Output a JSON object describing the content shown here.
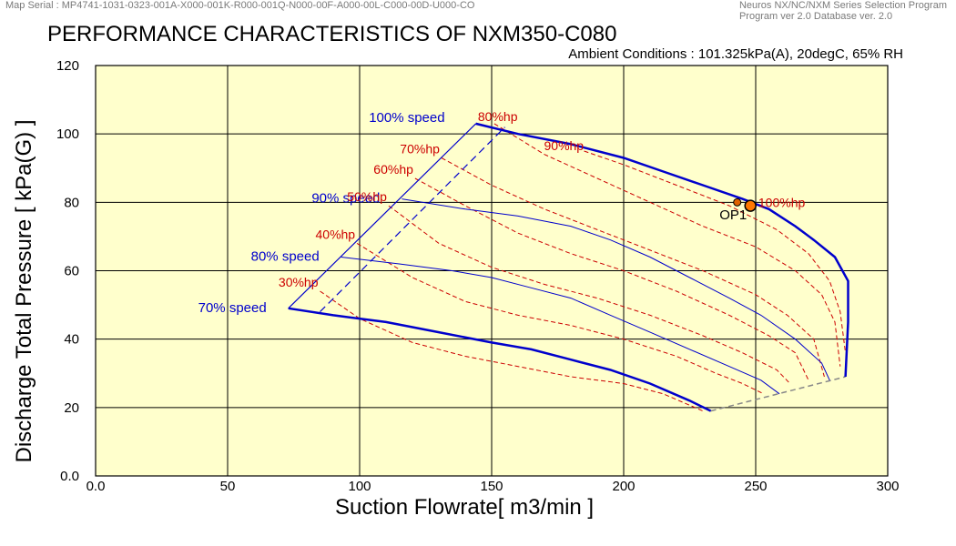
{
  "header": {
    "map_serial": "Map Serial : MP4741-1031-0323-001A-X000-001K-R000-001Q-N000-00F-A000-00L-C000-00D-U000-CO",
    "program_line1": "Neuros NX/NC/NXM Series Selection Program",
    "program_line2": "Program ver 2.0 Database ver. 2.0"
  },
  "chart_data": {
    "type": "line",
    "title": "PERFORMANCE CHARACTERISTICS OF NXM350-C080",
    "subtitle": "Ambient Conditions : 101.325kPa(A), 20degC, 65% RH",
    "xlabel": "Suction Flowrate[ m3/min ]",
    "ylabel": "Discharge Total Pressure  [ kPa(G) ]",
    "xlim": [
      0,
      300
    ],
    "ylim": [
      0,
      120
    ],
    "xticks": [
      "0.0",
      "50",
      "100",
      "150",
      "200",
      "250",
      "300"
    ],
    "yticks": [
      "0.0",
      "20",
      "40",
      "60",
      "80",
      "100",
      "120"
    ],
    "grid": true,
    "background": "#FFFFCC",
    "speed_color": "#0000CC",
    "power_color": "#CC0000",
    "speed_lines": [
      {
        "name": "100% speed",
        "bold": true,
        "x": [
          144,
          160,
          180,
          200,
          215,
          230,
          245,
          255,
          265,
          272,
          280,
          285,
          285,
          284
        ],
        "y": [
          103,
          100,
          97,
          93,
          89,
          85,
          81,
          78,
          73,
          69,
          64,
          57,
          45,
          29
        ]
      },
      {
        "name": "90% speed",
        "bold": false,
        "x": [
          116,
          140,
          160,
          180,
          195,
          210,
          225,
          240,
          252,
          265,
          275,
          278
        ],
        "y": [
          81,
          78,
          76,
          73,
          69,
          64,
          58,
          52,
          47,
          40,
          33,
          28
        ]
      },
      {
        "name": "80% speed",
        "bold": false,
        "x": [
          93,
          115,
          135,
          150,
          165,
          180,
          195,
          210,
          225,
          240,
          252,
          259
        ],
        "y": [
          64,
          62,
          60,
          58,
          55,
          52,
          47,
          42,
          37,
          32,
          28,
          24
        ]
      },
      {
        "name": "70% speed",
        "bold": true,
        "x": [
          73,
          90,
          110,
          130,
          150,
          165,
          180,
          195,
          210,
          225,
          233
        ],
        "y": [
          49,
          47,
          45,
          42,
          39,
          37,
          34,
          31,
          27,
          22,
          19
        ]
      }
    ],
    "surge_line": {
      "x": [
        73,
        144
      ],
      "y": [
        49,
        103
      ]
    },
    "blue_dashed_line": {
      "x": [
        85,
        155
      ],
      "y": [
        48,
        102
      ]
    },
    "choke_line": {
      "x": [
        233,
        284
      ],
      "y": [
        19,
        29
      ]
    },
    "power_lines": [
      {
        "name": "30%hp",
        "x": [
          85,
          100,
          120,
          140,
          160,
          180,
          200,
          215,
          230
        ],
        "y": [
          54,
          46,
          39,
          35,
          32,
          29,
          27,
          24,
          19
        ]
      },
      {
        "name": "40%hp",
        "x": [
          99,
          120,
          140,
          160,
          180,
          200,
          220,
          235,
          245,
          253
        ],
        "y": [
          68,
          58,
          51,
          47,
          44,
          40,
          35,
          30,
          27,
          24
        ]
      },
      {
        "name": "50%hp",
        "x": [
          111,
          130,
          150,
          170,
          190,
          210,
          230,
          245,
          258,
          263
        ],
        "y": [
          79,
          68,
          61,
          56,
          52,
          47,
          41,
          36,
          31,
          27
        ]
      },
      {
        "name": "60%hp",
        "x": [
          121,
          140,
          160,
          180,
          200,
          220,
          240,
          255,
          265,
          270
        ],
        "y": [
          87,
          79,
          71,
          65,
          60,
          54,
          47,
          41,
          36,
          28
        ]
      },
      {
        "name": "70%hp",
        "x": [
          131,
          150,
          170,
          190,
          210,
          230,
          250,
          262,
          272,
          276
        ],
        "y": [
          93,
          85,
          78,
          72,
          66,
          60,
          53,
          47,
          40,
          29
        ]
      },
      {
        "name": "80%hp",
        "x": [
          151,
          170,
          190,
          210,
          230,
          250,
          265,
          275,
          280,
          282
        ],
        "y": [
          103,
          94,
          87,
          80,
          73,
          67,
          60,
          53,
          45,
          32
        ]
      },
      {
        "name": "90%hp",
        "x": [
          185,
          200,
          220,
          240,
          258,
          270,
          278,
          282,
          284
        ],
        "y": [
          95,
          91,
          85,
          79,
          72,
          65,
          57,
          48,
          36
        ]
      }
    ],
    "hundred_hp_label": "100%hp",
    "operating_point": {
      "name": "OP1",
      "x": 248,
      "y": 79,
      "color": "#FF7700"
    },
    "design_point": {
      "x": 243,
      "y": 80
    }
  }
}
